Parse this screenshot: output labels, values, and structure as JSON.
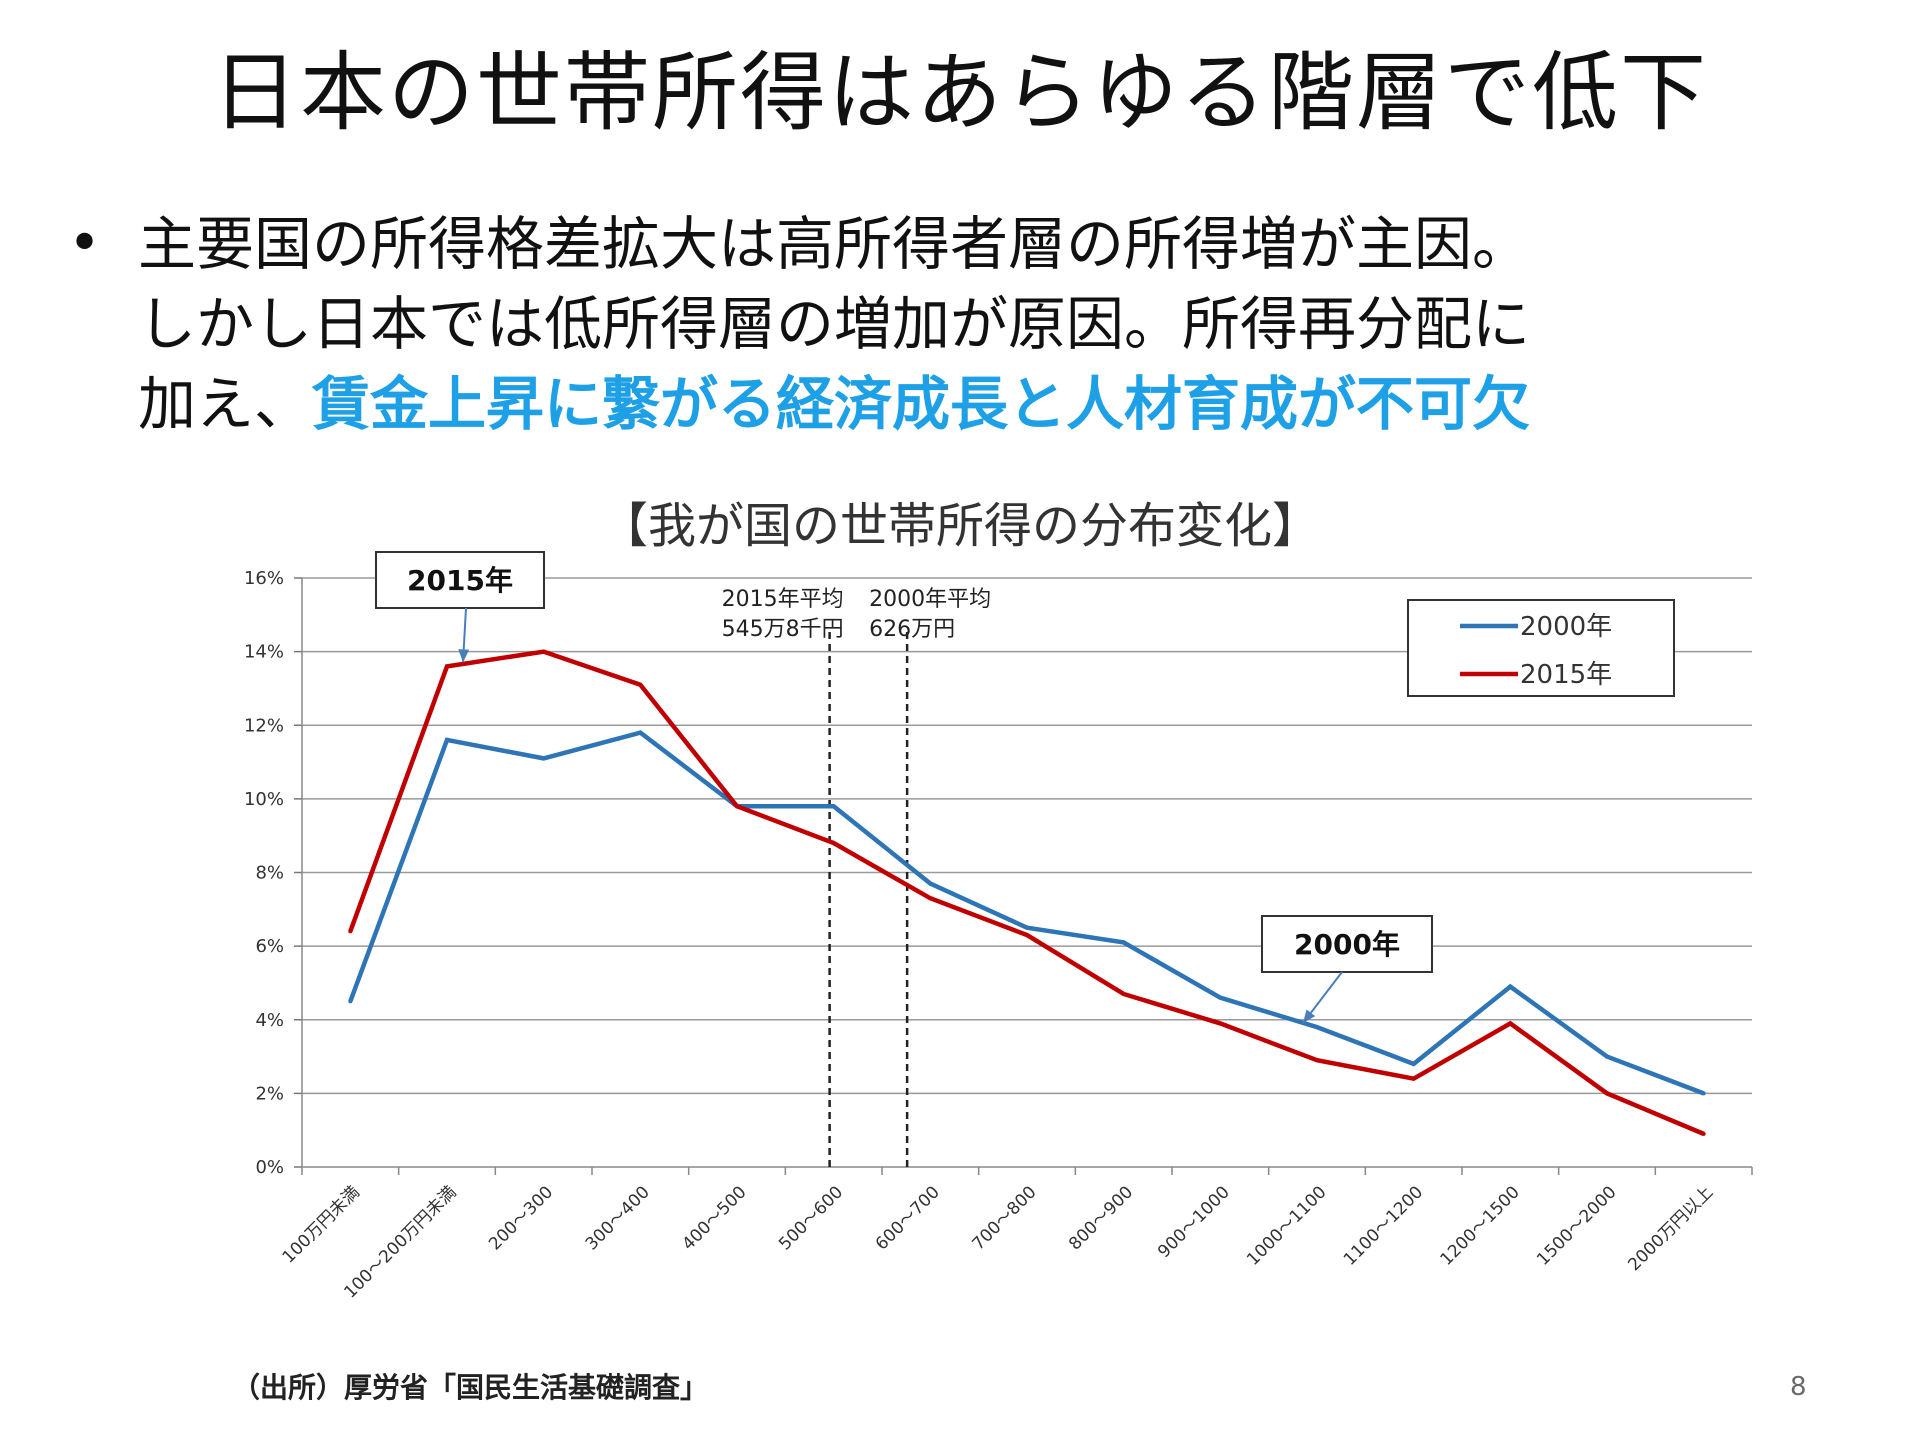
{
  "slide": {
    "title": "日本の世帯所得はあらゆる階層で低下",
    "bullet": {
      "line1": "主要国の所得格差拡大は高所得者層の所得増が主因。",
      "line2": "しかし日本では低所得層の増加が原因。所得再分配に",
      "line3_prefix": "加え、",
      "line3_highlight": "賃金上昇に繋がる経済成長と人材育成が不可欠"
    },
    "source": "（出所）厚労省「国民生活基礎調査」",
    "page_number": "8"
  },
  "colors": {
    "highlight": "#1ea0e6",
    "series_2000": "#2e75b6",
    "series_2015": "#c00000",
    "grid": "#9a9a9a"
  },
  "chart_data": {
    "type": "line",
    "title": "【我が国の世帯所得の分布変化】",
    "xlabel": "",
    "ylabel": "",
    "ylim": [
      0,
      16
    ],
    "y_ticks": [
      0,
      2,
      4,
      6,
      8,
      10,
      12,
      14,
      16
    ],
    "y_tick_labels": [
      "0%",
      "2%",
      "4%",
      "6%",
      "8%",
      "10%",
      "12%",
      "14%",
      "16%"
    ],
    "grid": true,
    "legend_position": "top-right",
    "categories": [
      "100万円未満",
      "100～200万円未満",
      "200～300",
      "300～400",
      "400～500",
      "500～600",
      "600～700",
      "700～800",
      "800～900",
      "900～1000",
      "1000～1100",
      "1100～1200",
      "1200～1500",
      "1500～2000",
      "2000万円以上"
    ],
    "series": [
      {
        "name": "2000年",
        "color": "#2e75b6",
        "values": [
          4.5,
          11.6,
          11.1,
          11.8,
          9.8,
          9.8,
          7.7,
          6.5,
          6.1,
          4.6,
          3.8,
          2.8,
          4.9,
          3.0,
          2.0
        ]
      },
      {
        "name": "2015年",
        "color": "#c00000",
        "values": [
          6.4,
          13.6,
          14.0,
          13.1,
          9.8,
          8.8,
          7.3,
          6.3,
          4.7,
          3.9,
          2.9,
          2.4,
          3.9,
          2.0,
          0.9
        ]
      }
    ],
    "reference_lines": [
      {
        "label_line1": "2015年平均",
        "label_line2": "545万8千円",
        "value": 545.8
      },
      {
        "label_line1": "2000年平均",
        "label_line2": "626万円",
        "value": 626
      }
    ],
    "annotations": [
      {
        "text": "2015年",
        "series": "2015年",
        "category_index": 1
      },
      {
        "text": "2000年",
        "series": "2000年",
        "category_index": 10
      }
    ]
  }
}
